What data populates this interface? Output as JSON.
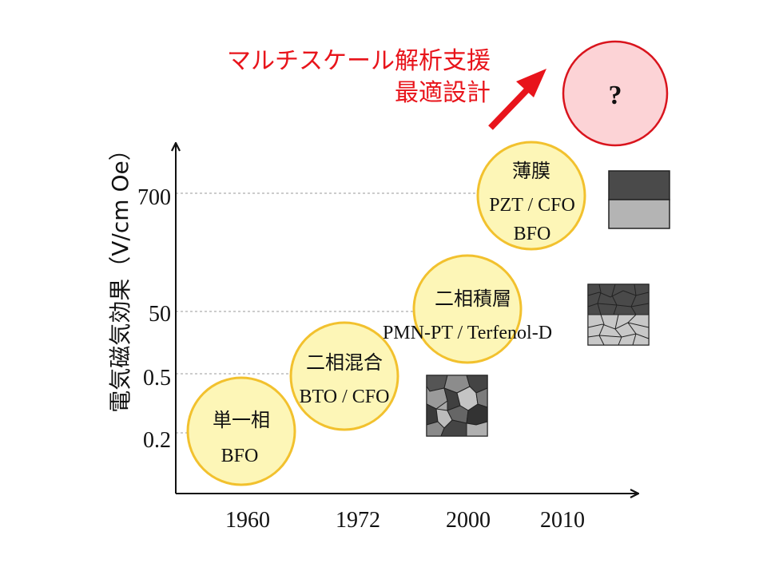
{
  "header": {
    "line1": "マルチスケール解析支援",
    "line2": "最適設計",
    "color": "#e8141b"
  },
  "future": {
    "label": "?",
    "fill": "#fcd3d6",
    "stroke": "#d9141d"
  },
  "axis": {
    "ylabel": "電気磁気効果（V/cm Oe）",
    "y_ticks": [
      "700",
      "50",
      "0.5",
      "0.2"
    ],
    "x_ticks": [
      "1960",
      "1972",
      "2000",
      "2010"
    ]
  },
  "milestones": [
    {
      "title": "単一相",
      "materials": [
        "BFO"
      ],
      "year": "1960",
      "value": "0.2"
    },
    {
      "title": "二相混合",
      "materials": [
        "BTO / CFO"
      ],
      "year": "1972",
      "value": "0.5"
    },
    {
      "title": "二相積層",
      "materials": [
        "PMN-PT / Terfenol-D"
      ],
      "year": "2000",
      "value": "50"
    },
    {
      "title": "薄膜",
      "materials": [
        "PZT / CFO",
        "BFO"
      ],
      "year": "2010",
      "value": "700"
    }
  ],
  "colors": {
    "bubble_fill": "#fdf6b7",
    "bubble_stroke": "#f2c12e",
    "gridline": "#9a9a9a",
    "axis": "#111111"
  }
}
